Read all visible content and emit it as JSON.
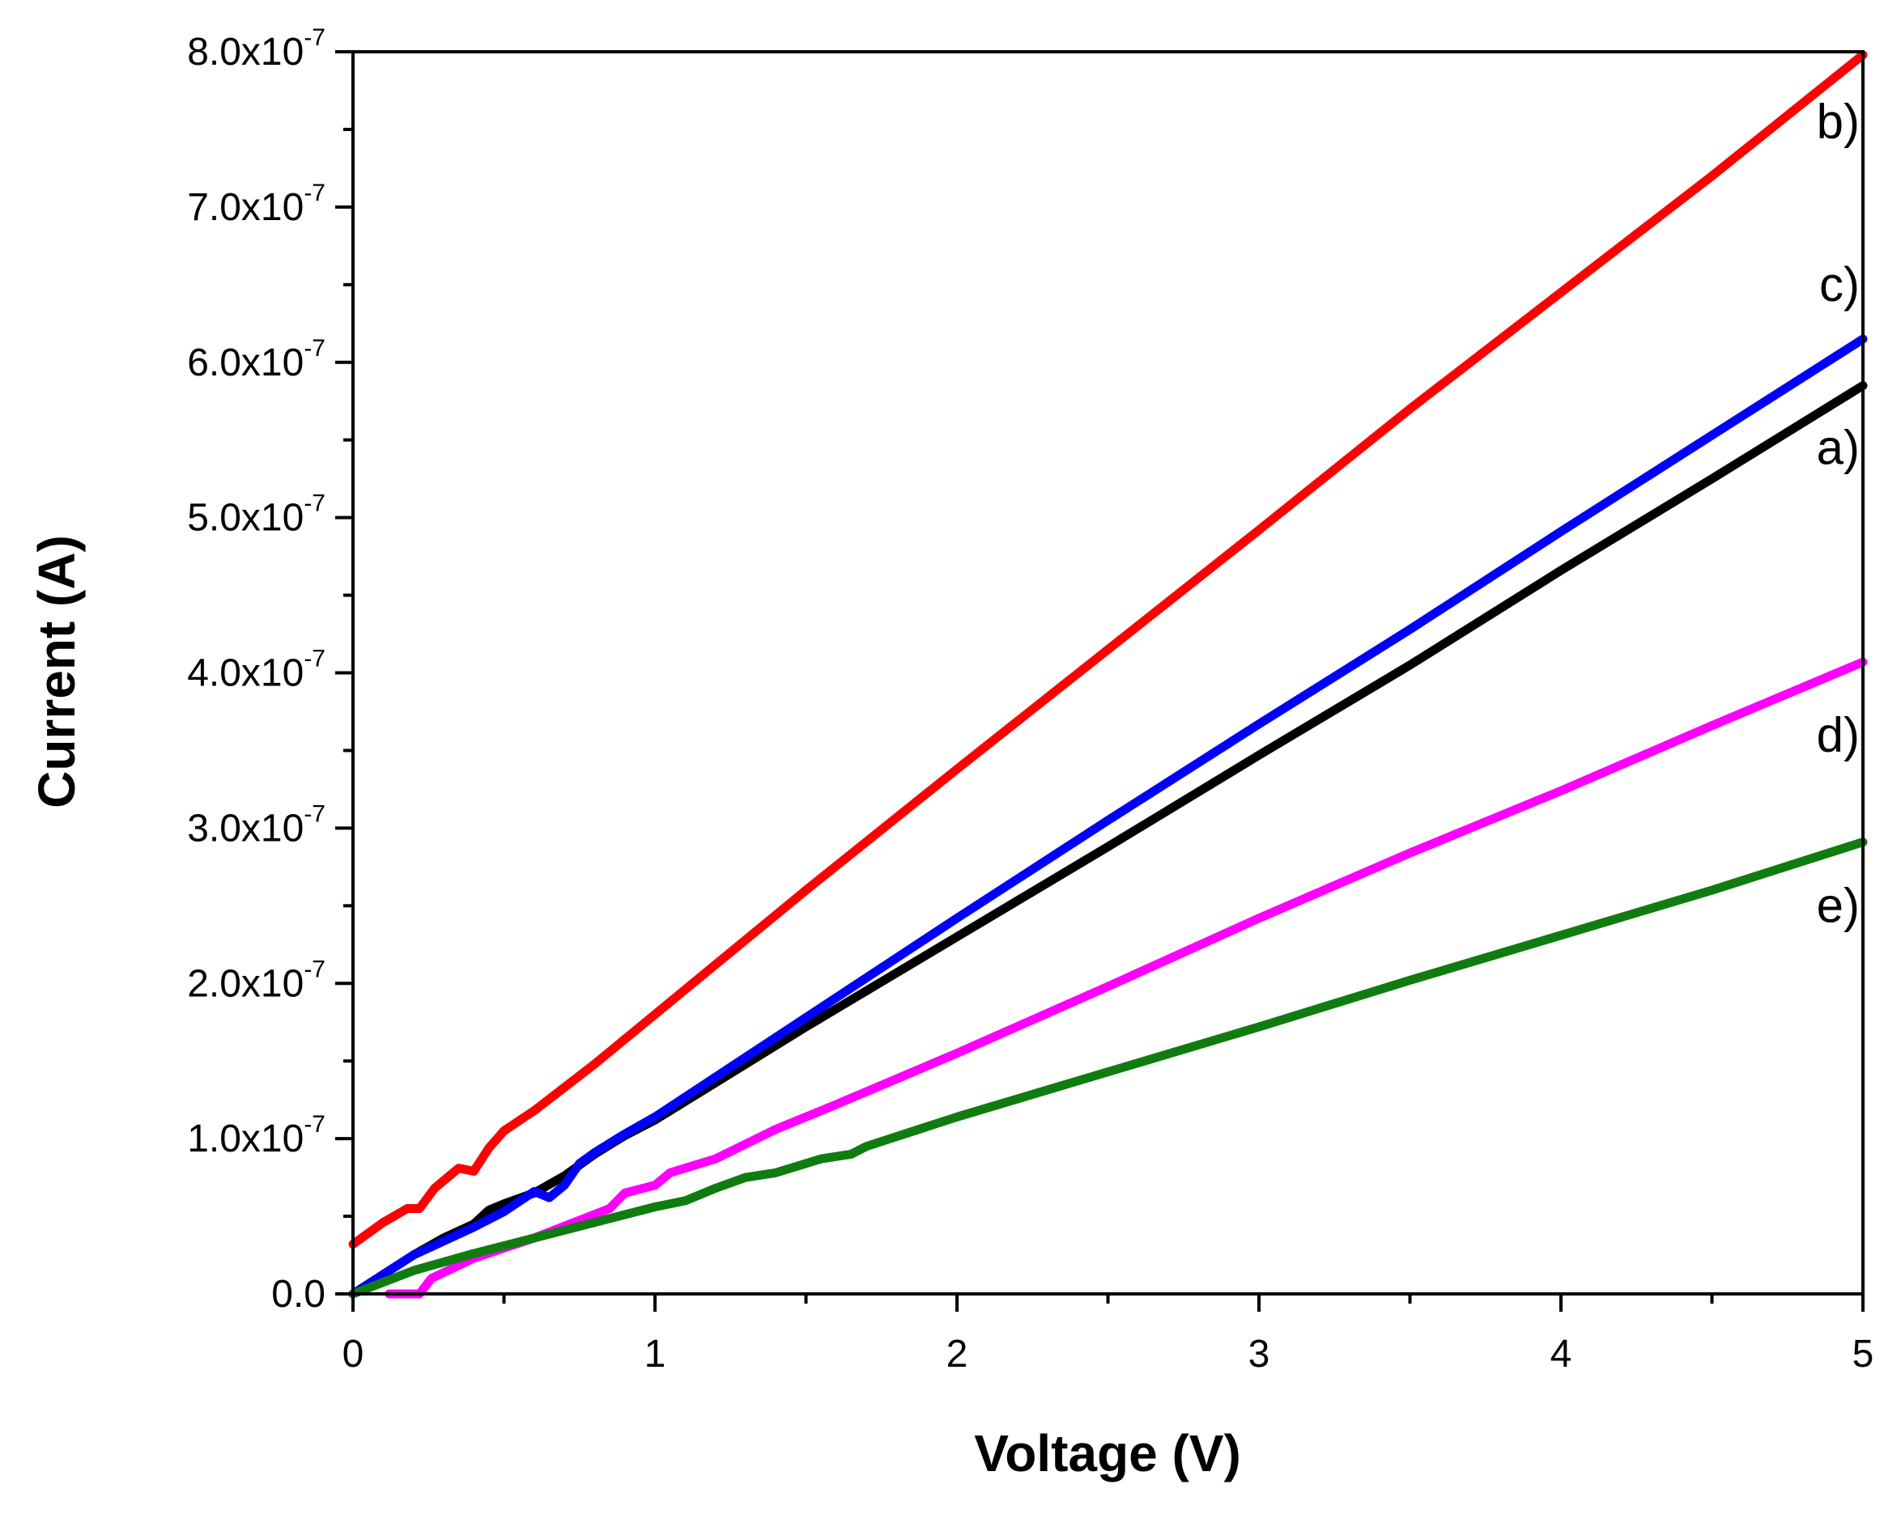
{
  "chart_data": {
    "type": "line",
    "title": "",
    "xlabel": "Voltage (V)",
    "ylabel": "Current (A)",
    "xlim": [
      0,
      5
    ],
    "ylim": [
      0,
      8e-07
    ],
    "grid": false,
    "legend": "inline labels at right end of lines",
    "x_ticks": [
      {
        "value": 0,
        "label": "0"
      },
      {
        "value": 1,
        "label": "1"
      },
      {
        "value": 2,
        "label": "2"
      },
      {
        "value": 3,
        "label": "3"
      },
      {
        "value": 4,
        "label": "4"
      },
      {
        "value": 5,
        "label": "5"
      }
    ],
    "y_ticks": [
      {
        "value": 0,
        "mantissa": "0.0",
        "exp": ""
      },
      {
        "value": 1e-07,
        "mantissa": "1.0x10",
        "exp": "-7"
      },
      {
        "value": 2e-07,
        "mantissa": "2.0x10",
        "exp": "-7"
      },
      {
        "value": 3e-07,
        "mantissa": "3.0x10",
        "exp": "-7"
      },
      {
        "value": 4e-07,
        "mantissa": "4.0x10",
        "exp": "-7"
      },
      {
        "value": 5e-07,
        "mantissa": "5.0x10",
        "exp": "-7"
      },
      {
        "value": 6e-07,
        "mantissa": "6.0x10",
        "exp": "-7"
      },
      {
        "value": 7e-07,
        "mantissa": "7.0x10",
        "exp": "-7"
      },
      {
        "value": 8e-07,
        "mantissa": "8.0x10",
        "exp": "-7"
      }
    ],
    "series": [
      {
        "name": "a)",
        "color": "#000000",
        "label_value": 5.45e-07,
        "points": [
          [
            0,
            0
          ],
          [
            0.2,
            2.5e-08
          ],
          [
            0.3,
            3.6e-08
          ],
          [
            0.4,
            4.5e-08
          ],
          [
            0.45,
            5.4e-08
          ],
          [
            0.5,
            5.8e-08
          ],
          [
            0.6,
            6.5e-08
          ],
          [
            0.7,
            7.6e-08
          ],
          [
            0.8,
            9e-08
          ],
          [
            0.9,
            1.02e-07
          ],
          [
            1.0,
            1.12e-07
          ],
          [
            1.5,
            1.72e-07
          ],
          [
            2.0,
            2.3e-07
          ],
          [
            2.5,
            2.88e-07
          ],
          [
            3.0,
            3.47e-07
          ],
          [
            3.5,
            4.05e-07
          ],
          [
            4.0,
            4.66e-07
          ],
          [
            4.5,
            5.25e-07
          ],
          [
            5.0,
            5.85e-07
          ]
        ]
      },
      {
        "name": "b)",
        "color": "#ff0000",
        "label_value": 7.55e-07,
        "points": [
          [
            0,
            3.2e-08
          ],
          [
            0.1,
            4.6e-08
          ],
          [
            0.18,
            5.5e-08
          ],
          [
            0.22,
            5.5e-08
          ],
          [
            0.27,
            6.8e-08
          ],
          [
            0.35,
            8.1e-08
          ],
          [
            0.4,
            7.9e-08
          ],
          [
            0.45,
            9.4e-08
          ],
          [
            0.5,
            1.05e-07
          ],
          [
            0.6,
            1.18e-07
          ],
          [
            0.8,
            1.48e-07
          ],
          [
            1.0,
            1.8e-07
          ],
          [
            1.5,
            2.6e-07
          ],
          [
            2.0,
            3.38e-07
          ],
          [
            2.5,
            4.15e-07
          ],
          [
            3.0,
            4.92e-07
          ],
          [
            3.5,
            5.7e-07
          ],
          [
            4.0,
            6.45e-07
          ],
          [
            4.5,
            7.2e-07
          ],
          [
            5.0,
            7.98e-07
          ]
        ]
      },
      {
        "name": "c)",
        "color": "#0000ff",
        "label_value": 6.5e-07,
        "points": [
          [
            0,
            0
          ],
          [
            0.2,
            2.5e-08
          ],
          [
            0.3,
            3.4e-08
          ],
          [
            0.4,
            4.3e-08
          ],
          [
            0.5,
            5.3e-08
          ],
          [
            0.6,
            6.6e-08
          ],
          [
            0.65,
            6.2e-08
          ],
          [
            0.7,
            7e-08
          ],
          [
            0.75,
            8.4e-08
          ],
          [
            0.8,
            9.1e-08
          ],
          [
            0.9,
            1.03e-07
          ],
          [
            1.0,
            1.14e-07
          ],
          [
            1.5,
            1.78e-07
          ],
          [
            2.0,
            2.42e-07
          ],
          [
            2.5,
            3.05e-07
          ],
          [
            3.0,
            3.67e-07
          ],
          [
            3.5,
            4.28e-07
          ],
          [
            4.0,
            4.91e-07
          ],
          [
            4.5,
            5.53e-07
          ],
          [
            5.0,
            6.15e-07
          ]
        ]
      },
      {
        "name": "d)",
        "color": "#ff00ff",
        "label_value": 3.6e-07,
        "points": [
          [
            0.12,
            0
          ],
          [
            0.22,
            0
          ],
          [
            0.26,
            1e-08
          ],
          [
            0.4,
            2.3e-08
          ],
          [
            0.6,
            3.6e-08
          ],
          [
            0.85,
            5.5e-08
          ],
          [
            0.9,
            6.5e-08
          ],
          [
            1.0,
            7e-08
          ],
          [
            1.05,
            7.8e-08
          ],
          [
            1.2,
            8.7e-08
          ],
          [
            1.4,
            1.06e-07
          ],
          [
            1.6,
            1.22e-07
          ],
          [
            2.0,
            1.55e-07
          ],
          [
            2.5,
            1.98e-07
          ],
          [
            3.0,
            2.42e-07
          ],
          [
            3.5,
            2.84e-07
          ],
          [
            4.0,
            3.24e-07
          ],
          [
            4.5,
            3.66e-07
          ],
          [
            5.0,
            4.07e-07
          ]
        ]
      },
      {
        "name": "e)",
        "color": "#107c10",
        "label_value": 2.5e-07,
        "points": [
          [
            0,
            0
          ],
          [
            0.2,
            1.5e-08
          ],
          [
            0.4,
            2.6e-08
          ],
          [
            0.6,
            3.6e-08
          ],
          [
            0.8,
            4.6e-08
          ],
          [
            1.0,
            5.6e-08
          ],
          [
            1.1,
            6e-08
          ],
          [
            1.2,
            6.8e-08
          ],
          [
            1.3,
            7.5e-08
          ],
          [
            1.4,
            7.8e-08
          ],
          [
            1.55,
            8.7e-08
          ],
          [
            1.65,
            9e-08
          ],
          [
            1.7,
            9.5e-08
          ],
          [
            2.0,
            1.14e-07
          ],
          [
            2.5,
            1.43e-07
          ],
          [
            3.0,
            1.72e-07
          ],
          [
            3.5,
            2.02e-07
          ],
          [
            4.0,
            2.31e-07
          ],
          [
            4.5,
            2.6e-07
          ],
          [
            5.0,
            2.91e-07
          ]
        ]
      }
    ]
  }
}
